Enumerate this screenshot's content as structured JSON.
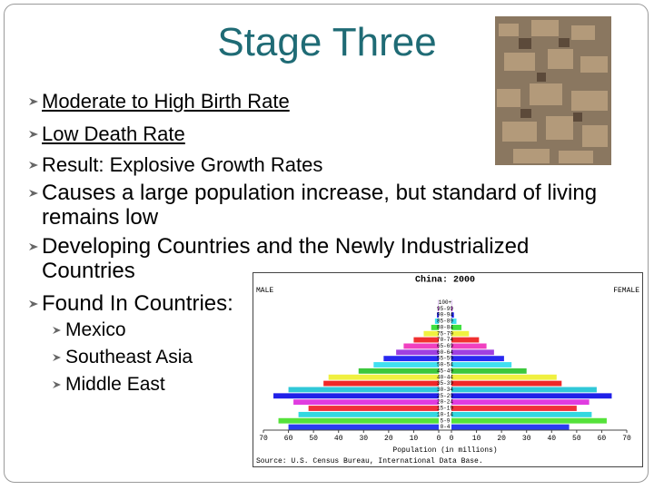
{
  "title": "Stage Three",
  "bullets": [
    "Moderate to High Birth Rate",
    "Low Death Rate",
    "Result: Explosive Growth Rates",
    "Causes a large population increase, but standard of living remains low",
    "Developing Countries and the Newly Industrialized Countries",
    "Found In Countries:"
  ],
  "sub_bullets": [
    "Mexico",
    "Southeast Asia",
    "Middle East"
  ],
  "chart_data": {
    "type": "pyramid",
    "title": "China: 2000",
    "left_label": "MALE",
    "right_label": "FEMALE",
    "x_label": "Population (in millions)",
    "source": "Source: U.S. Census Bureau, International Data Base.",
    "categories": [
      "0-4",
      "5-9",
      "10-14",
      "15-19",
      "20-24",
      "25-29",
      "30-34",
      "35-39",
      "40-44",
      "45-49",
      "50-54",
      "55-59",
      "60-64",
      "65-69",
      "70-74",
      "75-79",
      "80-84",
      "85-89",
      "90-94",
      "95-99",
      "100+"
    ],
    "series": [
      {
        "name": "MALE",
        "values": [
          60,
          64,
          56,
          52,
          58,
          66,
          60,
          46,
          44,
          32,
          26,
          22,
          17,
          14,
          10,
          6,
          3,
          1.5,
          0.7,
          0.3,
          0.1
        ]
      },
      {
        "name": "FEMALE",
        "values": [
          47,
          62,
          56,
          50,
          55,
          64,
          58,
          44,
          42,
          30,
          24,
          21,
          17,
          14,
          11,
          7,
          4,
          2,
          1,
          0.4,
          0.1
        ]
      }
    ],
    "colors": [
      "#2a3cf0",
      "#55e23a",
      "#33d8e0",
      "#f0303a",
      "#e03ce0",
      "#2020e8",
      "#30c8d8",
      "#f02828",
      "#f0f040",
      "#3cc83c",
      "#40e0f0",
      "#2828f0",
      "#a040e0",
      "#f040c0",
      "#f03030",
      "#f0f040",
      "#40e040",
      "#40e0f0",
      "#2828f0",
      "#c040e0",
      "#8020c0"
    ],
    "xlim": [
      0,
      70
    ],
    "xticks": [
      0,
      10,
      20,
      30,
      40,
      50,
      60,
      70
    ]
  }
}
